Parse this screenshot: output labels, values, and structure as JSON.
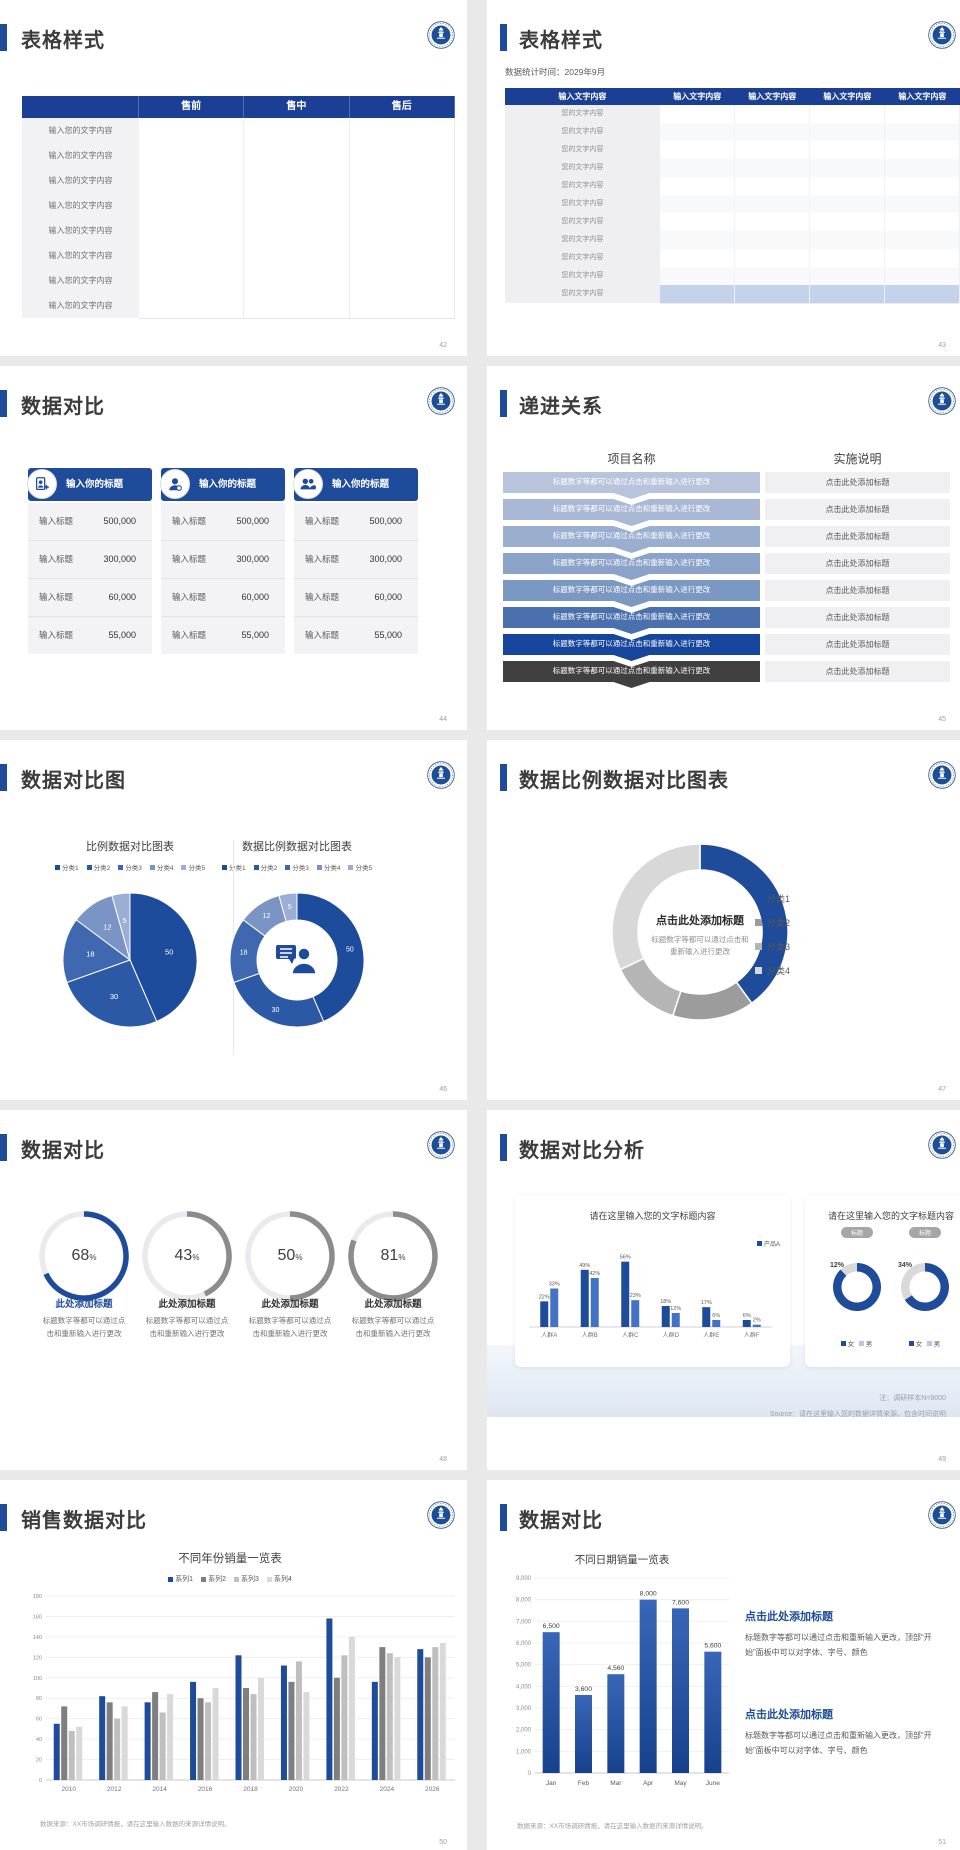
{
  "app": {
    "background": "#e9e9e9",
    "accent_blue": "#1e4c9a",
    "header_blue": "#1a3f94"
  },
  "slides": {
    "s42": {
      "page": "42",
      "title": "表格样式",
      "table": {
        "headers": [
          "",
          "售前",
          "售中",
          "售后"
        ],
        "row_label": "输入您的文字内容",
        "row_count": 8
      }
    },
    "s43": {
      "page": "43",
      "title": "表格样式",
      "subtitle": "数据统计时间：2029年9月",
      "table": {
        "headers": [
          "输入文字内容",
          "输入文字内容",
          "输入文字内容",
          "输入文字内容",
          "输入文字内容"
        ],
        "row_label": "您的文字内容",
        "row_count": 11
      }
    },
    "s44": {
      "page": "44",
      "title": "数据对比",
      "cards": [
        {
          "icon": "person-add-icon",
          "header": "输入你的标题",
          "rows": [
            {
              "label": "输入标题",
              "value": "500,000"
            },
            {
              "label": "输入标题",
              "value": "300,000"
            },
            {
              "label": "输入标题",
              "value": "60,000"
            },
            {
              "label": "输入标题",
              "value": "55,000"
            }
          ]
        },
        {
          "icon": "person-icon",
          "header": "输入你的标题",
          "rows": [
            {
              "label": "输入标题",
              "value": "500,000"
            },
            {
              "label": "输入标题",
              "value": "300,000"
            },
            {
              "label": "输入标题",
              "value": "60,000"
            },
            {
              "label": "输入标题",
              "value": "55,000"
            }
          ]
        },
        {
          "icon": "people-icon",
          "header": "输入你的标题",
          "rows": [
            {
              "label": "输入标题",
              "value": "500,000"
            },
            {
              "label": "输入标题",
              "value": "300,000"
            },
            {
              "label": "输入标题",
              "value": "60,000"
            },
            {
              "label": "输入标题",
              "value": "55,000"
            }
          ]
        }
      ]
    },
    "s45": {
      "page": "45",
      "title": "递进关系",
      "column1": "项目名称",
      "column2": "实施说明",
      "step_label": "标题数字等都可以通过点击和重新输入进行更改",
      "note_label": "点击此处添加标题",
      "step_count": 8,
      "step_colors": [
        "#b7c4dc",
        "#a9b9d5",
        "#9aaed0",
        "#8ba3c9",
        "#7b98c3",
        "#4a71ae",
        "#16459c",
        "#404040"
      ]
    },
    "s46": {
      "page": "46",
      "title": "数据对比图"
    },
    "s47": {
      "page": "47",
      "title": "数据比例数据对比图表"
    },
    "s48": {
      "page": "48",
      "title": "数据对比",
      "gauge_title": "此处添加标题",
      "gauge_desc": "标题数字等都可以通过点击和重新输入进行更改"
    },
    "s49": {
      "page": "49",
      "title": "数据对比分析",
      "card1_title": "请在这里输入您的文字标题内容",
      "card2_title": "请在这里输入您的文字标题内容",
      "badge": "标题",
      "note1": "注：调研样本N=9000",
      "note2": "Source：请在这里输入您的数据详情来源，包含时间说明"
    },
    "s50": {
      "page": "50",
      "title": "销售数据对比",
      "footer": "数据来源：XX市场调研情报，请在这里输入数据的来源详情说明。"
    },
    "s51": {
      "page": "51",
      "title": "数据对比",
      "heading1": "点击此处添加标题",
      "para1": "标题数字等都可以通过点击和重新输入更改，顶部“开始”面板中可以对字体、字号、颜色",
      "heading2": "点击此处添加标题",
      "para2": "标题数字等都可以通过点击和重新输入更改，顶部“开始”面板中可以对字体、字号、颜色",
      "footer": "数据来源：XX市场调研情报，请在这里输入数据的来源详情说明。"
    }
  },
  "chart_data": [
    {
      "id": "pie_46_left",
      "slide": "46",
      "type": "pie",
      "title": "比例数据对比图表",
      "legend": [
        "分类1",
        "分类2",
        "分类3",
        "分类4",
        "分类5"
      ],
      "values": [
        50,
        30,
        18,
        12,
        5
      ],
      "colors": [
        "#1d4c9c",
        "#2c59a6",
        "#3f68b0",
        "#7b94c6",
        "#9caed6"
      ],
      "labels_shown": true
    },
    {
      "id": "donut_46_right",
      "slide": "46",
      "type": "pie",
      "title": "数据比例数据对比图表",
      "legend": [
        "分类1",
        "分类2",
        "分类3",
        "分类4",
        "分类5"
      ],
      "values": [
        50,
        30,
        18,
        12,
        5
      ],
      "colors": [
        "#1d4c9c",
        "#2c59a6",
        "#3f68b0",
        "#7b94c6",
        "#9caed6"
      ],
      "inner_ratio": 0.6,
      "center_icon": "person-speech-icon"
    },
    {
      "id": "donut_47",
      "slide": "47",
      "type": "pie",
      "legend": [
        "分类1",
        "分类2",
        "分类3",
        "分类4"
      ],
      "values": [
        40,
        15,
        13,
        32
      ],
      "colors": [
        "#1e4c9a",
        "#9c9c9c",
        "#b5b5b5",
        "#d8d8d8"
      ],
      "inner_ratio": 0.71,
      "center_title": "点击此处添加标题",
      "center_sub_lines": [
        "标题数字等都可以通过点击和",
        "重新输入进行更改"
      ]
    },
    {
      "id": "gauges_48",
      "slide": "48",
      "type": "donut-gauges",
      "track": "#eaeaee",
      "items": [
        {
          "pct": 68,
          "color": "#1e4c9a"
        },
        {
          "pct": 43,
          "color": "#8c8c8c"
        },
        {
          "pct": 50,
          "color": "#8c8c8c"
        },
        {
          "pct": 81,
          "color": "#8c8c8c"
        }
      ]
    },
    {
      "id": "bars_49",
      "slide": "49",
      "type": "bar",
      "title": "请在这里输入您的文字标题内容",
      "legend": [
        "产品A"
      ],
      "categories": [
        "人群A",
        "人群B",
        "人群C",
        "人群D",
        "人群E",
        "人群F"
      ],
      "series": [
        {
          "name": "产品A",
          "values": [
            22,
            49,
            56,
            18,
            17,
            6
          ]
        },
        {
          "name": "",
          "values": [
            33,
            42,
            23,
            12,
            6,
            2
          ]
        }
      ],
      "colors": [
        "#1e4c9a",
        "#4472c4"
      ],
      "unit": "%",
      "ylim": [
        0,
        60
      ]
    },
    {
      "id": "donuts_49",
      "slide": "49",
      "type": "pie",
      "badge": "标题",
      "items": [
        {
          "label": "12%",
          "value": 12
        },
        {
          "label": "34%",
          "value": 34
        }
      ],
      "legend": [
        "女",
        "男"
      ],
      "colors": [
        "#1e4c9a",
        "#d9d9d9"
      ],
      "legend_colors": [
        "#1e4c9a",
        "#b4c7e7"
      ]
    },
    {
      "id": "bars_50",
      "slide": "50",
      "type": "bar",
      "title": "不同年份销量一览表",
      "legend": [
        "系列1",
        "系列2",
        "系列3",
        "系列4"
      ],
      "categories": [
        "2010",
        "2012",
        "2014",
        "2016",
        "2018",
        "2020",
        "2022",
        "2024",
        "2026"
      ],
      "series": [
        {
          "name": "系列1",
          "values": [
            55,
            82,
            76,
            96,
            122,
            112,
            158,
            96,
            128
          ]
        },
        {
          "name": "系列2",
          "values": [
            72,
            76,
            86,
            80,
            90,
            96,
            100,
            130,
            120
          ]
        },
        {
          "name": "系列3",
          "values": [
            48,
            60,
            66,
            76,
            84,
            116,
            122,
            124,
            130
          ]
        },
        {
          "name": "系列4",
          "values": [
            52,
            72,
            84,
            90,
            100,
            86,
            140,
            120,
            134
          ]
        }
      ],
      "colors": [
        "#1e4c9a",
        "#7f7f7f",
        "#bfbfbf",
        "#d9d9d9"
      ],
      "ylim": [
        0,
        180
      ],
      "ytick_step": 20
    },
    {
      "id": "bars_51",
      "slide": "51",
      "type": "bar",
      "title": "不同日期销量一览表",
      "categories": [
        "Jan",
        "Feb",
        "Mar",
        "Apr",
        "May",
        "June"
      ],
      "values": [
        6500,
        3600,
        4560,
        8000,
        7600,
        5600
      ],
      "value_labels": [
        "6,500",
        "3,600",
        "4,560",
        "8,000",
        "7,600",
        "5,600"
      ],
      "color": "#1e4c9a",
      "ylim": [
        0,
        9000
      ],
      "ytick_step": 1000
    }
  ]
}
